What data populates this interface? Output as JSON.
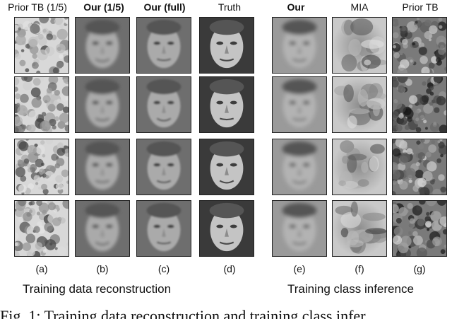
{
  "columns": [
    {
      "header": "Prior TB (1/5)",
      "bold": false,
      "label": "(a)",
      "style": "noise-light"
    },
    {
      "header": "Our (1/5)",
      "bold": true,
      "label": "(b)",
      "style": "face-blur"
    },
    {
      "header": "Our (full)",
      "bold": true,
      "label": "(c)",
      "style": "face-mid"
    },
    {
      "header": "Truth",
      "bold": false,
      "label": "(d)",
      "style": "face-sharp"
    },
    {
      "header": "Our",
      "bold": true,
      "label": "(e)",
      "style": "face-soft"
    },
    {
      "header": "MIA",
      "bold": false,
      "label": "(f)",
      "style": "blob"
    },
    {
      "header": "Prior TB",
      "bold": false,
      "label": "(g)",
      "style": "noise-dark"
    }
  ],
  "section_labels": {
    "left": "Training data reconstruction",
    "right": "Training class inference"
  },
  "caption": "Fig. 1: Training data reconstruction and training class infer"
}
